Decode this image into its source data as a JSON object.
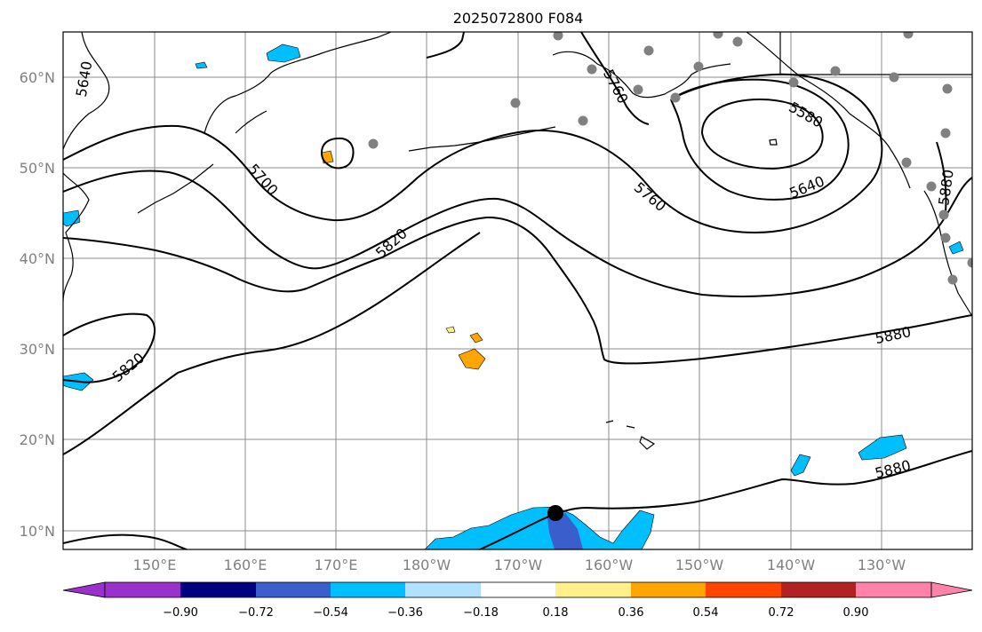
{
  "title": "2025072800 F084",
  "axes": {
    "lon_labels": [
      "150°E",
      "160°E",
      "170°E",
      "180°W",
      "170°W",
      "160°W",
      "150°W",
      "140°W",
      "130°W"
    ],
    "lat_labels": [
      "60°N",
      "50°N",
      "40°N",
      "30°N",
      "20°N",
      "10°N"
    ]
  },
  "contour_labels": [
    "5640",
    "5700",
    "5760",
    "5580",
    "5640",
    "5760",
    "5820",
    "5820",
    "5880",
    "5880",
    "5880"
  ],
  "colorbar": {
    "ticks": [
      "−0.90",
      "−0.72",
      "−0.54",
      "−0.36",
      "−0.18",
      "0.18",
      "0.36",
      "0.54",
      "0.72",
      "0.90"
    ],
    "colors": [
      "#9932cc",
      "#000080",
      "#3a5fcd",
      "#00bfff",
      "#b0e2ff",
      "#ffffff",
      "#fff08c",
      "#ffa500",
      "#ff4500",
      "#b22222",
      "#ff82ab"
    ]
  },
  "shading_colors": {
    "neg_light": "#00bfff",
    "neg_mid": "#3a5fcd",
    "pos": "#ffa500"
  },
  "marker_color": "#000000",
  "station_color": "#808080"
}
